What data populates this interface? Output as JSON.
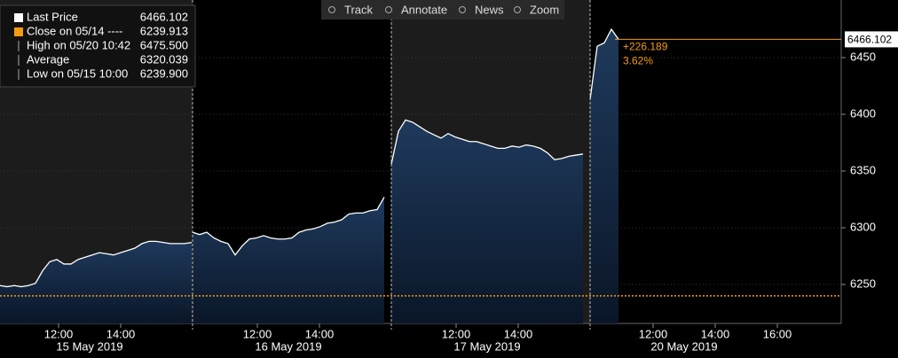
{
  "chart_data": {
    "type": "area",
    "toolbar": [
      "Track",
      "Annotate",
      "News",
      "Zoom"
    ],
    "legend": [
      {
        "label": "Last Price",
        "value": 6466.102
      },
      {
        "label": "Close on 05/14 ----",
        "value": 6239.913
      },
      {
        "label": "High on 05/20 10:42",
        "value": 6475.5,
        "value_label": "6475.500"
      },
      {
        "label": "Average",
        "value": 6320.039
      },
      {
        "label": "Low on 05/15 10:00",
        "value": 6239.9,
        "value_label": "6239.900"
      }
    ],
    "change": {
      "value": 226.189,
      "label": "+226.189"
    },
    "change_pct": {
      "value": 3.62,
      "label": "3.62%"
    },
    "color": "#ffffff",
    "ylim": [
      6215.6,
      6500.8
    ],
    "yticks": [
      6250,
      6300,
      6350,
      6400,
      6450
    ],
    "days": [
      {
        "label": "15 May 2019",
        "ticks": [
          "12:00",
          "14:00"
        ],
        "values": [
          6249,
          6248,
          6249,
          6248,
          6249,
          6251,
          6262,
          6270,
          6272,
          6268,
          6268,
          6272,
          6274,
          6276,
          6278,
          6277,
          6276,
          6278,
          6280,
          6282,
          6286,
          6288,
          6288,
          6287,
          6286,
          6286,
          6286,
          6287
        ]
      },
      {
        "label": "16 May 2019",
        "ticks": [
          "12:00",
          "14:00"
        ],
        "values": [
          6296,
          6294,
          6296,
          6291,
          6288,
          6286,
          6276,
          6284,
          6290,
          6291,
          6293,
          6291,
          6290,
          6290,
          6291,
          6296,
          6298,
          6299,
          6301,
          6304,
          6305,
          6307,
          6312,
          6313,
          6313,
          6315,
          6316,
          6327
        ]
      },
      {
        "label": "17 May 2019",
        "ticks": [
          "12:00",
          "14:00"
        ],
        "values": [
          6356,
          6385,
          6395,
          6393,
          6389,
          6385,
          6382,
          6379,
          6383,
          6380,
          6378,
          6376,
          6376,
          6374,
          6372,
          6370,
          6370,
          6372,
          6371,
          6373,
          6372,
          6370,
          6366,
          6360,
          6361,
          6363,
          6364,
          6365
        ]
      },
      {
        "label": "20 May 2019",
        "ticks": [
          "12:00",
          "14:00",
          "16:00"
        ],
        "values": [
          6413,
          6460,
          6463,
          6475,
          6466.102
        ]
      }
    ]
  }
}
